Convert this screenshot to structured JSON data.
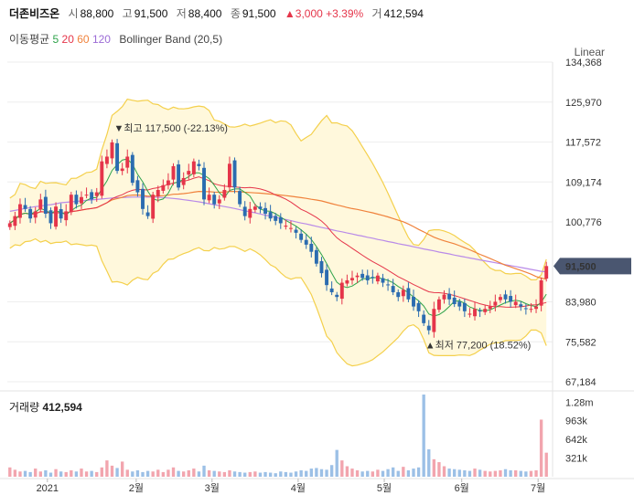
{
  "header": {
    "name": "더존비즈온",
    "open_label": "시",
    "open": "88,800",
    "high_label": "고",
    "high": "91,500",
    "low_label": "저",
    "low": "88,400",
    "close_label": "종",
    "close": "91,500",
    "change": "▲3,000 +3.39%",
    "volume_label": "거",
    "volume": "412,594"
  },
  "indicators": {
    "label": "이동평균",
    "ma5": "5",
    "ma20": "20",
    "ma60": "60",
    "ma120": "120",
    "bollinger": "Bollinger Band (20,5)"
  },
  "scale_mode": "Linear",
  "colors": {
    "up": "#e5354a",
    "down": "#2b6cb0",
    "ma5": "#2fa34b",
    "ma20": "#e5354a",
    "ma60": "#f0823c",
    "ma120": "#b98ae8",
    "band": "#f4d04c",
    "band_fill": "#fff8dc",
    "price_tag": "#4a5670"
  },
  "annotations": {
    "high": "▼최고 117,500 (-22.13%)",
    "low": "▲최저 77,200 (18.52%)"
  },
  "current_price_tag": "91,500",
  "volume_title": {
    "label": "거래량",
    "value": "412,594"
  },
  "chart_data": [
    {
      "type": "candlestick",
      "title": "",
      "price_ticks": [
        "134,368",
        "125,970",
        "117,572",
        "109,174",
        "100,776",
        "83,980",
        "75,582",
        "67,184"
      ],
      "price_tick_values": [
        134368,
        125970,
        117572,
        109174,
        100776,
        83980,
        75582,
        67184
      ],
      "ylim": [
        67184,
        134368
      ],
      "x_labels": [
        "2021",
        "2월",
        "3월",
        "4월",
        "5월",
        "6월",
        "7월"
      ],
      "x_label_positions": [
        0.074,
        0.238,
        0.378,
        0.537,
        0.696,
        0.839,
        0.98
      ],
      "close": [
        100500,
        102000,
        104500,
        103500,
        101500,
        103000,
        105500,
        102500,
        100500,
        104000,
        101500,
        103000,
        106500,
        104500,
        106000,
        106500,
        105500,
        107000,
        113500,
        114500,
        117500,
        111500,
        112000,
        114500,
        109000,
        107000,
        103500,
        102000,
        106500,
        107500,
        108500,
        109500,
        112500,
        108000,
        110000,
        111500,
        113500,
        112500,
        105500,
        106500,
        104500,
        105500,
        107500,
        113000,
        108000,
        104500,
        102000,
        103500,
        104000,
        103500,
        102500,
        101500,
        101000,
        100500,
        100000,
        99500,
        98500,
        97000,
        96000,
        94500,
        92000,
        90000,
        87500,
        86000,
        85000,
        88000,
        88500,
        89000,
        89500,
        89000,
        88500,
        89000,
        89500,
        88000,
        87500,
        86000,
        85000,
        86500,
        84500,
        83000,
        82000,
        79500,
        78000,
        82500,
        84500,
        85500,
        84500,
        83500,
        83000,
        82000,
        81500,
        82500,
        82000,
        82500,
        83000,
        84000,
        85000,
        84500,
        84000,
        84000,
        83000,
        82500,
        82500,
        83000,
        88500,
        91500
      ],
      "ma120": [
        103000,
        103200,
        103400,
        103600,
        103800,
        104000,
        104100,
        104300,
        104400,
        104600,
        104800,
        104900,
        105000,
        105100,
        105200,
        105300,
        105400,
        105500,
        105600,
        105700,
        105800,
        105850,
        105900,
        105950,
        106000,
        106000,
        106000,
        106000,
        106000,
        105950,
        105900,
        105800,
        105700,
        105600,
        105450,
        105300,
        105150,
        105000,
        104800,
        104600,
        104400,
        104200,
        104000,
        103800,
        103600,
        103350,
        103100,
        102900,
        102700,
        102450,
        102200,
        102000,
        101750,
        101500,
        101300,
        101050,
        100800,
        100550,
        100350,
        100100,
        99850,
        99600,
        99400,
        99150,
        98900,
        98700,
        98450,
        98250,
        98000,
        97800,
        97550,
        97350,
        97100,
        96900,
        96650,
        96450,
        96200,
        96000,
        95800,
        95550,
        95350,
        95100,
        94900,
        94700,
        94450,
        94250,
        94050,
        93800,
        93600,
        93400,
        93200,
        93000,
        92800,
        92600,
        92400,
        92200,
        92000,
        91800,
        91600,
        91400,
        91200,
        91000,
        90800,
        90600,
        90400,
        90300
      ]
    },
    {
      "type": "bar",
      "title": "거래량",
      "y_ticks": [
        "1.28m",
        "963k",
        "642k",
        "321k"
      ],
      "y_tick_values": [
        1280000,
        963000,
        642000,
        321000
      ],
      "ylim": [
        0,
        1410000
      ],
      "values": [
        160000,
        120000,
        90000,
        100000,
        80000,
        140000,
        90000,
        110000,
        70000,
        130000,
        90000,
        80000,
        110000,
        90000,
        140000,
        90000,
        100000,
        80000,
        160000,
        280000,
        190000,
        150000,
        260000,
        120000,
        90000,
        110000,
        80000,
        100000,
        90000,
        120000,
        80000,
        120000,
        160000,
        100000,
        90000,
        110000,
        140000,
        90000,
        190000,
        110000,
        100000,
        90000,
        80000,
        110000,
        90000,
        80000,
        70000,
        80000,
        90000,
        70000,
        80000,
        70000,
        60000,
        90000,
        80000,
        70000,
        90000,
        110000,
        100000,
        140000,
        150000,
        130000,
        120000,
        200000,
        460000,
        280000,
        180000,
        140000,
        110000,
        90000,
        100000,
        90000,
        120000,
        100000,
        130000,
        160000,
        100000,
        170000,
        110000,
        140000,
        160000,
        1420000,
        470000,
        300000,
        250000,
        180000,
        140000,
        130000,
        120000,
        110000,
        100000,
        140000,
        120000,
        100000,
        90000,
        100000,
        110000,
        130000,
        110000,
        110000,
        100000,
        90000,
        100000,
        110000,
        980000,
        412594
      ]
    }
  ]
}
